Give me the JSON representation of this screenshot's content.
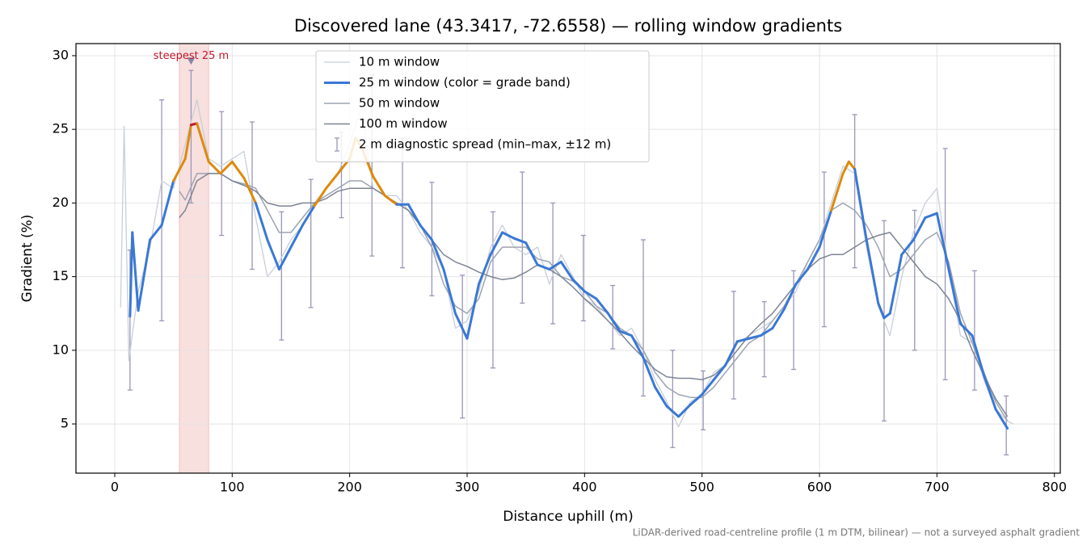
{
  "chart_data": {
    "type": "line",
    "title": "Discovered lane (43.3417, -72.6558) — rolling window gradients",
    "x_label": "Distance uphill (m)",
    "y_label": "Gradient (%)",
    "footnote": "LiDAR-derived road-centreline profile (1 m DTM, bilinear) — not a surveyed asphalt gradient",
    "xlim": [
      -33,
      805
    ],
    "ylim": [
      1.66,
      30.82
    ],
    "xticks": [
      0,
      100,
      200,
      300,
      400,
      500,
      600,
      700,
      800
    ],
    "yticks": [
      5,
      10,
      15,
      20,
      25,
      30
    ],
    "grid": true,
    "legend": "upper center",
    "highlight_span": [
      55,
      80
    ],
    "highlight_color": "#d9534f",
    "annotations": [
      {
        "text": "steepest 25 m",
        "x": 65,
        "y": 29.6,
        "color": "#c0182c"
      }
    ],
    "series": [
      {
        "name": "10 m window",
        "color": "#c8ced8",
        "width": 1.3,
        "x": [
          5,
          8,
          12,
          20,
          30,
          40,
          50,
          60,
          70,
          80,
          90,
          100,
          110,
          120,
          130,
          140,
          150,
          160,
          170,
          180,
          190,
          200,
          210,
          220,
          230,
          240,
          250,
          260,
          270,
          280,
          290,
          300,
          310,
          320,
          330,
          340,
          350,
          360,
          370,
          380,
          390,
          400,
          410,
          420,
          430,
          440,
          450,
          460,
          470,
          480,
          490,
          500,
          510,
          520,
          530,
          540,
          550,
          560,
          570,
          580,
          590,
          600,
          610,
          620,
          630,
          640,
          650,
          660,
          670,
          680,
          690,
          700,
          710,
          720,
          730,
          740,
          750,
          760,
          765
        ],
        "values": [
          12.9,
          25.2,
          9.3,
          14,
          17,
          21.5,
          21,
          24,
          27,
          23,
          22.5,
          23,
          23.5,
          19,
          15,
          16,
          17.5,
          18.5,
          20,
          21,
          22,
          24,
          26.5,
          21,
          20.5,
          20.5,
          19.5,
          18,
          17,
          15.5,
          11.5,
          12,
          14,
          17,
          18.5,
          17,
          16.5,
          17,
          14.5,
          16.5,
          15,
          13.5,
          13,
          12,
          11,
          11.5,
          10,
          8,
          6.5,
          4.8,
          6.5,
          7,
          8.5,
          9,
          10.5,
          11,
          11.5,
          12,
          13,
          14,
          16,
          17.5,
          20,
          22.5,
          22,
          17,
          13,
          11,
          15,
          18,
          20,
          21,
          15.5,
          11,
          10.5,
          8,
          6,
          5.2,
          5.0
        ]
      },
      {
        "name": "25 m window (color = grade band)",
        "color": "#3a78d4",
        "width": 3,
        "grade_bands": {
          "thresholds": [
            20,
            25
          ],
          "colors": [
            "#3a78d4",
            "#dd8a0c",
            "#c0182c"
          ]
        },
        "x": [
          13,
          15,
          20,
          30,
          40,
          50,
          60,
          65,
          70,
          80,
          90,
          100,
          110,
          120,
          130,
          140,
          150,
          160,
          170,
          180,
          190,
          200,
          205,
          210,
          220,
          230,
          240,
          250,
          260,
          270,
          280,
          290,
          300,
          310,
          320,
          330,
          340,
          350,
          360,
          370,
          380,
          390,
          400,
          410,
          420,
          430,
          440,
          450,
          460,
          470,
          480,
          490,
          500,
          510,
          520,
          530,
          540,
          550,
          560,
          570,
          580,
          590,
          600,
          610,
          620,
          625,
          630,
          640,
          650,
          655,
          660,
          670,
          680,
          690,
          700,
          710,
          720,
          730,
          740,
          750,
          760
        ],
        "values": [
          12.3,
          18.0,
          12.7,
          17.5,
          18.5,
          21.5,
          23.0,
          25.3,
          25.4,
          22.8,
          22.0,
          22.8,
          21.7,
          20.0,
          17.5,
          15.5,
          17.0,
          18.5,
          19.8,
          21.0,
          22.0,
          23.0,
          24.4,
          23.8,
          21.8,
          20.5,
          19.9,
          19.9,
          18.5,
          17.5,
          15.5,
          12.5,
          10.8,
          14.5,
          16.5,
          18.0,
          17.6,
          17.3,
          15.8,
          15.5,
          16.0,
          14.8,
          14.0,
          13.5,
          12.5,
          11.3,
          11.0,
          9.5,
          7.5,
          6.2,
          5.5,
          6.3,
          7.0,
          8.0,
          9.0,
          10.6,
          10.8,
          11.0,
          11.5,
          12.8,
          14.5,
          15.5,
          17.0,
          19.5,
          22.0,
          22.8,
          22.3,
          17.5,
          13.2,
          12.2,
          12.5,
          16.5,
          17.5,
          19.0,
          19.3,
          15.5,
          11.8,
          11.0,
          8.3,
          6.0,
          4.7
        ]
      },
      {
        "name": "50 m window",
        "color": "#9ca4b2",
        "width": 1.5,
        "x": [
          55,
          60,
          70,
          80,
          90,
          100,
          110,
          120,
          130,
          140,
          150,
          160,
          170,
          180,
          190,
          200,
          210,
          220,
          230,
          240,
          250,
          260,
          270,
          280,
          290,
          300,
          310,
          320,
          330,
          340,
          350,
          360,
          370,
          380,
          390,
          400,
          410,
          420,
          430,
          440,
          450,
          460,
          470,
          480,
          490,
          500,
          510,
          520,
          530,
          540,
          550,
          560,
          570,
          580,
          590,
          600,
          610,
          620,
          630,
          640,
          650,
          660,
          670,
          680,
          690,
          700,
          710,
          720,
          730,
          740,
          750,
          760
        ],
        "values": [
          20.8,
          20.2,
          22,
          22,
          22,
          21.5,
          21.3,
          21,
          19.5,
          18,
          18,
          19,
          20,
          20.5,
          21,
          21.5,
          21.5,
          21,
          20.5,
          20,
          19.5,
          18.5,
          17,
          14.5,
          13,
          12.5,
          13.5,
          16,
          17,
          17,
          17,
          16.2,
          16,
          15,
          14.7,
          14,
          13,
          12.5,
          11.5,
          11,
          10,
          8.5,
          7.5,
          7,
          6.8,
          6.8,
          7.5,
          8.5,
          9.5,
          10.5,
          11,
          12,
          13,
          14.5,
          16,
          17.5,
          19.5,
          20,
          19.5,
          18.5,
          17,
          15,
          15.5,
          16.5,
          17.5,
          18,
          16,
          12.5,
          10.5,
          8.5,
          6.5,
          5.2
        ]
      },
      {
        "name": "100 m window",
        "color": "#7c8494",
        "width": 1.5,
        "x": [
          55,
          60,
          70,
          80,
          90,
          100,
          110,
          120,
          130,
          140,
          150,
          160,
          170,
          180,
          190,
          200,
          210,
          220,
          230,
          240,
          250,
          260,
          270,
          280,
          290,
          300,
          310,
          320,
          330,
          340,
          350,
          360,
          370,
          380,
          390,
          400,
          410,
          420,
          430,
          440,
          450,
          460,
          470,
          480,
          490,
          500,
          510,
          520,
          530,
          540,
          550,
          560,
          570,
          580,
          590,
          600,
          610,
          620,
          630,
          640,
          650,
          660,
          670,
          680,
          690,
          700,
          710,
          720,
          730,
          740,
          750,
          760
        ],
        "values": [
          19,
          19.5,
          21.5,
          22,
          22,
          21.5,
          21.2,
          20.8,
          20,
          19.8,
          19.8,
          20,
          20,
          20.3,
          20.8,
          21,
          21,
          21,
          20.5,
          20,
          19.5,
          18.5,
          17.5,
          16.5,
          16,
          15.7,
          15.3,
          15,
          14.8,
          14.9,
          15.3,
          15.8,
          15.5,
          15,
          14.3,
          13.5,
          12.8,
          12,
          11.2,
          10.3,
          9.5,
          8.7,
          8.2,
          8.1,
          8.1,
          8,
          8.3,
          9,
          10,
          11,
          11.8,
          12.5,
          13.5,
          14.5,
          15.5,
          16.2,
          16.5,
          16.5,
          17,
          17.5,
          17.8,
          18,
          17,
          16,
          15,
          14.5,
          13.5,
          12,
          10,
          8.3,
          6.7,
          5.5
        ]
      }
    ],
    "error_bars": {
      "name": "2 m diagnostic spread (min–max, ±12 m)",
      "color": "#9a96b8",
      "x": [
        13,
        40,
        65,
        91,
        117,
        142,
        167,
        193,
        219,
        245,
        270,
        296,
        322,
        347,
        373,
        399,
        424,
        450,
        475,
        501,
        527,
        553,
        578,
        604,
        630,
        655,
        681,
        707,
        732,
        759
      ],
      "low": [
        7.3,
        12,
        20,
        17.8,
        15.5,
        10.7,
        12.9,
        19,
        16.4,
        15.6,
        13.7,
        5.4,
        8.8,
        13.2,
        11.8,
        12,
        10.1,
        6.9,
        3.4,
        4.6,
        6.7,
        8.2,
        8.7,
        11.6,
        15.6,
        5.2,
        10,
        8,
        7.3,
        2.9
      ],
      "high": [
        16.8,
        27,
        29,
        26.2,
        25.5,
        19.4,
        21.6,
        24.8,
        28.7,
        24.4,
        21.4,
        15.1,
        19.4,
        22.1,
        20,
        17.8,
        14.4,
        17.5,
        10,
        8.6,
        14,
        13.3,
        15.4,
        22.1,
        26,
        18.8,
        19.5,
        23.7,
        15.4,
        6.9
      ]
    }
  }
}
